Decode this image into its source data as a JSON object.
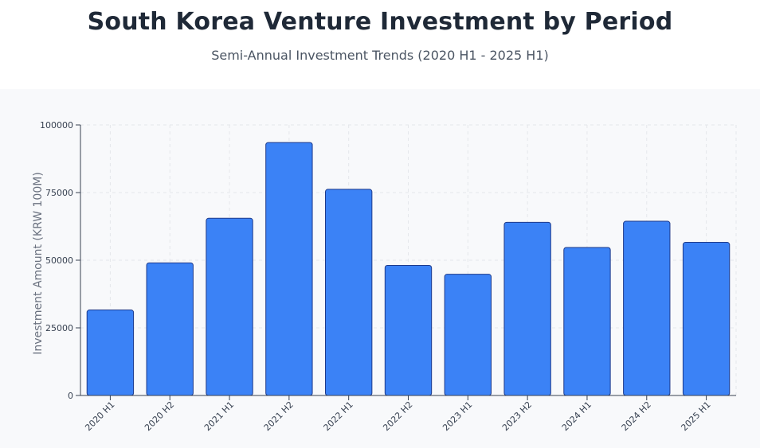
{
  "header": {
    "title": "South Korea Venture Investment by Period",
    "subtitle": "Semi-Annual Investment Trends (2020 H1 - 2025 H1)"
  },
  "colors": {
    "bar_fill": "#3b82f6",
    "bar_stroke": "#1e3a8a",
    "grid": "#e5e7eb",
    "axis": "#374151",
    "tick_text": "#374151",
    "axis_label": "#6b7280"
  },
  "chart_data": {
    "type": "bar",
    "title": "South Korea Venture Investment by Period",
    "subtitle": "Semi-Annual Investment Trends (2020 H1 - 2025 H1)",
    "xlabel": "",
    "ylabel": "Investment Amount (KRW 100M)",
    "categories": [
      "2020 H1",
      "2020 H2",
      "2021 H1",
      "2021 H2",
      "2022 H1",
      "2022 H2",
      "2023 H1",
      "2023 H2",
      "2024 H1",
      "2024 H2",
      "2025 H1"
    ],
    "values": [
      31600,
      49000,
      65500,
      93500,
      76200,
      48100,
      44800,
      64000,
      54700,
      64400,
      56600
    ],
    "ylim": [
      0,
      100000
    ],
    "yticks": [
      0,
      25000,
      50000,
      75000,
      100000
    ],
    "grid": true,
    "legend": "none"
  }
}
